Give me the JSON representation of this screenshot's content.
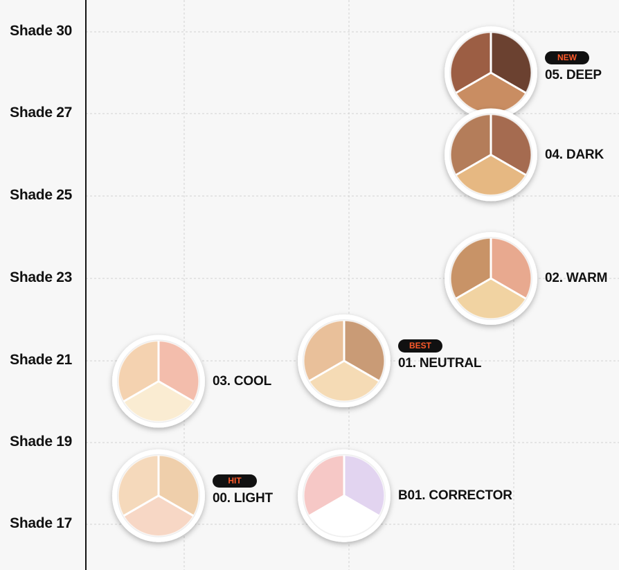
{
  "chart_data": {
    "type": "scatter",
    "title": "",
    "xlabel": "",
    "ylabel": "",
    "y_tick_labels": [
      "Shade 30",
      "Shade 27",
      "Shade 25",
      "Shade 23",
      "Shade 21",
      "Shade 19",
      "Shade 17"
    ],
    "grid": true,
    "x_columns": 3,
    "points": [
      {
        "label": "05. DEEP",
        "badge": "NEW",
        "column": 3,
        "shade": 28.5,
        "colors": [
          "#9c5e44",
          "#6b4130",
          "#c98d62"
        ]
      },
      {
        "label": "04. DARK",
        "badge": "",
        "column": 3,
        "shade": 26,
        "colors": [
          "#b47d5a",
          "#a56b50",
          "#e6b882"
        ]
      },
      {
        "label": "02. WARM",
        "badge": "",
        "column": 3,
        "shade": 23,
        "colors": [
          "#c89367",
          "#e8a98f",
          "#f1d3a2"
        ]
      },
      {
        "label": "01. NEUTRAL",
        "badge": "BEST",
        "column": 2,
        "shade": 21,
        "colors": [
          "#e9c09a",
          "#c99b76",
          "#f5dbb5"
        ]
      },
      {
        "label": "03. COOL",
        "badge": "",
        "column": 1,
        "shade": 20.5,
        "colors": [
          "#f4d2b0",
          "#f3bdac",
          "#faecd2"
        ]
      },
      {
        "label": "00. LIGHT",
        "badge": "HIT",
        "column": 1,
        "shade": 17.7,
        "colors": [
          "#f5d9bb",
          "#efcfab",
          "#f7d7c5"
        ]
      },
      {
        "label": "B01. CORRECTOR",
        "badge": "",
        "column": 2,
        "shade": 17.7,
        "colors": [
          "#f6c8c6",
          "#e2d4f0",
          "#ffffff"
        ]
      }
    ]
  }
}
